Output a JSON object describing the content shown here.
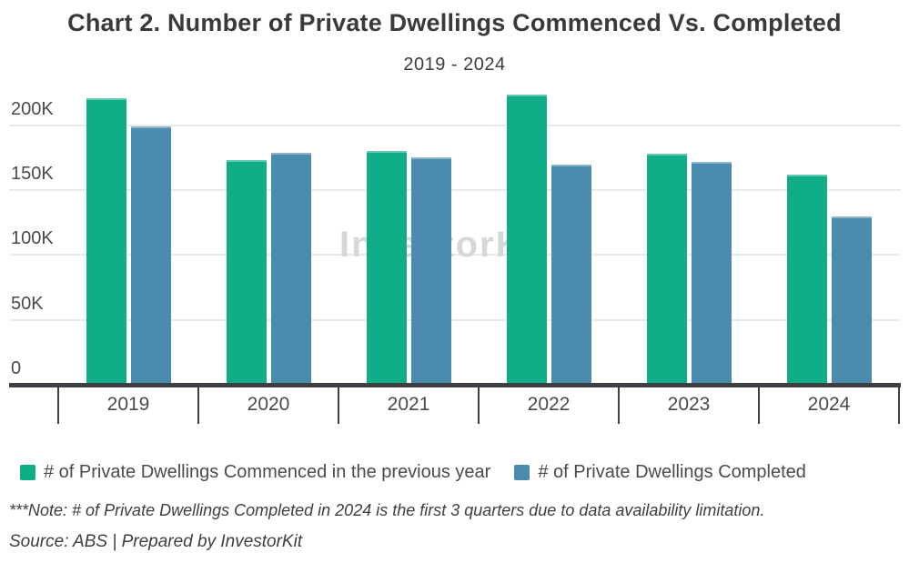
{
  "header": {
    "title": "Chart 2. Number of Private Dwellings Commenced Vs. Completed",
    "subtitle": "2019 - 2024"
  },
  "watermark": {
    "text": "InvestorKit"
  },
  "chart_data": {
    "type": "bar",
    "categories": [
      "2019",
      "2020",
      "2021",
      "2022",
      "2023",
      "2024"
    ],
    "series": [
      {
        "name": "# of Private Dwellings Commenced in the previous year",
        "color": "#0fae88",
        "values": [
          221000,
          173000,
          180000,
          224000,
          178000,
          162000
        ]
      },
      {
        "name": "# of Private Dwellings Completed",
        "color": "#4b8cae",
        "values": [
          199000,
          179000,
          175000,
          170000,
          172000,
          130000
        ]
      }
    ],
    "xlabel": "",
    "ylabel": "",
    "ylim": [
      0,
      230000
    ],
    "yticks": [
      {
        "value": 0,
        "label": "0"
      },
      {
        "value": 50000,
        "label": "50K"
      },
      {
        "value": 100000,
        "label": "100K"
      },
      {
        "value": 150000,
        "label": "150K"
      },
      {
        "value": 200000,
        "label": "200K"
      }
    ],
    "grid": true,
    "legend_position": "bottom"
  },
  "footer": {
    "note": "***Note: # of Private Dwellings Completed in 2024 is the first 3 quarters due to data availability limitation.",
    "source": "Source: ABS | Prepared by InvestorKit"
  },
  "colors": {
    "axis": "#3d4044",
    "gridline": "#e9e9e9",
    "text": "#4a4a4a",
    "watermark": "#d5d7d8"
  }
}
